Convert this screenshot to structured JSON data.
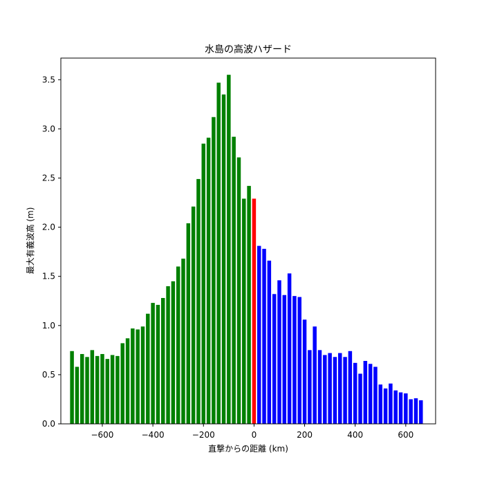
{
  "chart_data": {
    "type": "bar",
    "title": "水島の高波ハザード",
    "xlabel": "直撃からの距離 (km)",
    "ylabel": "最大有義波高 (m)",
    "xlim": [
      -764,
      718
    ],
    "ylim": [
      0,
      3.72
    ],
    "xticks": [
      -600,
      -400,
      -200,
      0,
      200,
      400,
      600
    ],
    "xtick_labels": [
      "−600",
      "−400",
      "−200",
      "0",
      "200",
      "400",
      "600"
    ],
    "yticks": [
      0.0,
      0.5,
      1.0,
      1.5,
      2.0,
      2.5,
      3.0,
      3.5
    ],
    "ytick_labels": [
      "0.0",
      "0.5",
      "1.0",
      "1.5",
      "2.0",
      "2.5",
      "3.0",
      "3.5"
    ],
    "bar_spacing_km": 20,
    "bar_width_km": 15,
    "grid": false,
    "colors": {
      "before": "#008000",
      "landfall": "#ff0000",
      "after": "#0000ff"
    },
    "series": [
      {
        "color_key": "before",
        "x": [
          -720,
          -700,
          -680,
          -660,
          -640,
          -620,
          -600,
          -580,
          -560,
          -540,
          -520,
          -500,
          -480,
          -460,
          -440,
          -420,
          -400,
          -380,
          -360,
          -340,
          -320,
          -300,
          -280,
          -260,
          -240,
          -220,
          -200,
          -180,
          -160,
          -140,
          -120,
          -100,
          -80,
          -60,
          -40,
          -20
        ],
        "values": [
          0.74,
          0.58,
          0.71,
          0.68,
          0.75,
          0.69,
          0.71,
          0.66,
          0.7,
          0.69,
          0.82,
          0.87,
          0.97,
          0.96,
          0.99,
          1.12,
          1.23,
          1.21,
          1.28,
          1.4,
          1.45,
          1.6,
          1.68,
          2.04,
          2.21,
          2.49,
          2.85,
          2.91,
          3.12,
          3.47,
          3.35,
          3.55,
          2.92,
          2.71,
          2.29,
          2.42
        ]
      },
      {
        "color_key": "landfall",
        "x": [
          0
        ],
        "values": [
          2.29
        ]
      },
      {
        "color_key": "after",
        "x": [
          20,
          40,
          60,
          80,
          100,
          120,
          140,
          160,
          180,
          200,
          220,
          240,
          260,
          280,
          300,
          320,
          340,
          360,
          380,
          400,
          420,
          440,
          460,
          480,
          500,
          520,
          540,
          560,
          580,
          600,
          620,
          640,
          660
        ],
        "values": [
          1.81,
          1.78,
          1.66,
          1.32,
          1.46,
          1.31,
          1.53,
          1.3,
          1.29,
          1.06,
          0.75,
          0.99,
          0.75,
          0.7,
          0.72,
          0.68,
          0.72,
          0.68,
          0.74,
          0.62,
          0.51,
          0.64,
          0.61,
          0.58,
          0.4,
          0.36,
          0.41,
          0.34,
          0.32,
          0.31,
          0.25,
          0.26,
          0.24
        ]
      }
    ]
  }
}
